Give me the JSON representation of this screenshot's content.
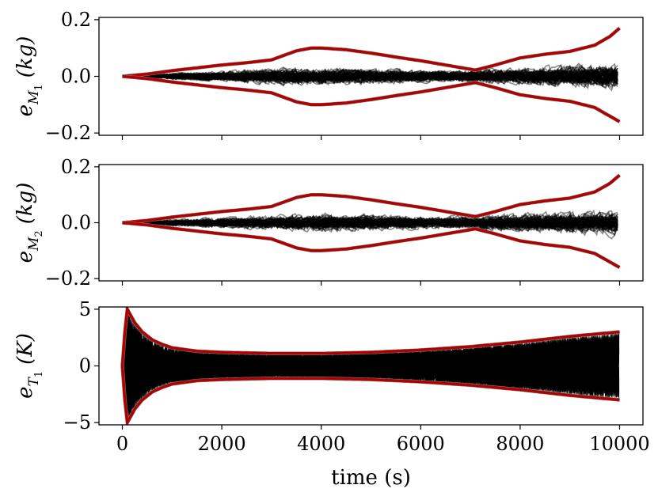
{
  "chart_data": [
    {
      "type": "line",
      "panel": "top",
      "ylabel": {
        "base": "e",
        "sub": "M",
        "subsub": "1",
        "unit": "(kg)"
      },
      "xlim": [
        0,
        10000
      ],
      "ylim": [
        -0.2,
        0.2
      ],
      "yticks": [
        -0.2,
        0.0,
        0.2
      ],
      "ytick_labels": [
        "−0.2",
        "0.0",
        "0.2"
      ],
      "xticks": [
        0,
        2000,
        4000,
        6000,
        8000,
        10000
      ],
      "show_xtick_labels": false,
      "envelope_color": "#b00000",
      "trajectory_color": "#000000",
      "series": [
        {
          "role": "upper-bound",
          "x": [
            0,
            500,
            1000,
            1500,
            2000,
            2500,
            3000,
            3500,
            3800,
            4000,
            4500,
            5000,
            5500,
            6000,
            6500,
            7000,
            7100,
            7500,
            8000,
            8500,
            9000,
            9500,
            9800,
            10000
          ],
          "values": [
            0.0,
            0.008,
            0.02,
            0.03,
            0.04,
            0.048,
            0.058,
            0.09,
            0.1,
            0.1,
            0.094,
            0.082,
            0.068,
            0.055,
            0.04,
            0.025,
            0.022,
            0.04,
            0.065,
            0.078,
            0.088,
            0.11,
            0.14,
            0.17
          ]
        },
        {
          "role": "lower-bound",
          "x": [
            0,
            500,
            1000,
            1500,
            2000,
            2500,
            3000,
            3500,
            3800,
            4000,
            4500,
            5000,
            5500,
            6000,
            6500,
            7000,
            7100,
            7500,
            8000,
            8500,
            9000,
            9500,
            9800,
            10000
          ],
          "values": [
            0.0,
            -0.008,
            -0.02,
            -0.03,
            -0.04,
            -0.048,
            -0.058,
            -0.09,
            -0.1,
            -0.1,
            -0.094,
            -0.082,
            -0.068,
            -0.055,
            -0.04,
            -0.025,
            -0.022,
            -0.04,
            -0.065,
            -0.078,
            -0.088,
            -0.11,
            -0.14,
            -0.16
          ]
        }
      ],
      "trajectory_band": {
        "x": [
          0,
          1000,
          2000,
          3000,
          4000,
          5000,
          6000,
          7000,
          8000,
          9000,
          10000
        ],
        "max_abs": [
          0.0,
          0.02,
          0.03,
          0.045,
          0.05,
          0.045,
          0.035,
          0.035,
          0.05,
          0.06,
          0.075
        ]
      }
    },
    {
      "type": "line",
      "panel": "middle",
      "ylabel": {
        "base": "e",
        "sub": "M",
        "subsub": "2",
        "unit": "(kg)"
      },
      "xlim": [
        0,
        10000
      ],
      "ylim": [
        -0.2,
        0.2
      ],
      "yticks": [
        -0.2,
        0.0,
        0.2
      ],
      "ytick_labels": [
        "−0.2",
        "0.0",
        "0.2"
      ],
      "xticks": [
        0,
        2000,
        4000,
        6000,
        8000,
        10000
      ],
      "show_xtick_labels": false,
      "envelope_color": "#b00000",
      "trajectory_color": "#000000",
      "series": [
        {
          "role": "upper-bound",
          "x": [
            0,
            500,
            1000,
            1500,
            2000,
            2500,
            3000,
            3500,
            3800,
            4000,
            4500,
            5000,
            5500,
            6000,
            6500,
            7000,
            7100,
            7500,
            8000,
            8500,
            9000,
            9500,
            9800,
            10000
          ],
          "values": [
            0.0,
            0.008,
            0.02,
            0.03,
            0.04,
            0.048,
            0.058,
            0.09,
            0.1,
            0.1,
            0.094,
            0.082,
            0.068,
            0.055,
            0.04,
            0.025,
            0.022,
            0.04,
            0.065,
            0.078,
            0.088,
            0.11,
            0.14,
            0.17
          ]
        },
        {
          "role": "lower-bound",
          "x": [
            0,
            500,
            1000,
            1500,
            2000,
            2500,
            3000,
            3500,
            3800,
            4000,
            4500,
            5000,
            5500,
            6000,
            6500,
            7000,
            7100,
            7500,
            8000,
            8500,
            9000,
            9500,
            9800,
            10000
          ],
          "values": [
            0.0,
            -0.008,
            -0.02,
            -0.03,
            -0.04,
            -0.048,
            -0.058,
            -0.09,
            -0.1,
            -0.1,
            -0.094,
            -0.082,
            -0.068,
            -0.055,
            -0.04,
            -0.025,
            -0.022,
            -0.04,
            -0.065,
            -0.078,
            -0.088,
            -0.11,
            -0.14,
            -0.16
          ]
        }
      ],
      "trajectory_band": {
        "x": [
          0,
          1000,
          2000,
          3000,
          4000,
          5000,
          6000,
          7000,
          8000,
          9000,
          10000
        ],
        "max_abs": [
          0.0,
          0.02,
          0.03,
          0.04,
          0.05,
          0.045,
          0.035,
          0.035,
          0.05,
          0.06,
          0.07
        ]
      }
    },
    {
      "type": "line",
      "panel": "bottom",
      "ylabel": {
        "base": "e",
        "sub": "T",
        "subsub": "1",
        "unit": "(K)"
      },
      "xlabel": "time (s)",
      "xlim": [
        0,
        10000
      ],
      "ylim": [
        -5,
        5
      ],
      "yticks": [
        -5,
        0,
        5
      ],
      "ytick_labels": [
        "−5",
        "0",
        "5"
      ],
      "xticks": [
        0,
        2000,
        4000,
        6000,
        8000,
        10000
      ],
      "xtick_labels": [
        "0",
        "2000",
        "4000",
        "6000",
        "8000",
        "10000"
      ],
      "show_xtick_labels": true,
      "envelope_color": "#b00000",
      "trajectory_color": "#000000",
      "series": [
        {
          "role": "upper-bound",
          "x": [
            0,
            50,
            100,
            150,
            250,
            400,
            600,
            800,
            1000,
            1500,
            2000,
            3000,
            4000,
            5000,
            6000,
            7000,
            8000,
            9000,
            10000
          ],
          "values": [
            0.0,
            3.0,
            5.0,
            4.6,
            3.8,
            3.0,
            2.3,
            1.9,
            1.6,
            1.3,
            1.2,
            1.1,
            1.1,
            1.2,
            1.4,
            1.7,
            2.1,
            2.6,
            3.0
          ]
        },
        {
          "role": "lower-bound",
          "x": [
            0,
            50,
            100,
            150,
            250,
            400,
            600,
            800,
            1000,
            1500,
            2000,
            3000,
            4000,
            5000,
            6000,
            7000,
            8000,
            9000,
            10000
          ],
          "values": [
            0.0,
            -3.0,
            -5.0,
            -4.6,
            -3.8,
            -3.0,
            -2.3,
            -1.9,
            -1.6,
            -1.3,
            -1.2,
            -1.1,
            -1.1,
            -1.2,
            -1.4,
            -1.7,
            -2.1,
            -2.6,
            -3.0
          ]
        }
      ],
      "trajectory_band": {
        "x": [
          0,
          50,
          100,
          150,
          250,
          400,
          600,
          800,
          1000,
          1500,
          2000,
          3000,
          4000,
          5000,
          6000,
          7000,
          8000,
          9000,
          10000
        ],
        "max_abs": [
          0.0,
          2.9,
          4.9,
          4.5,
          3.7,
          2.9,
          2.2,
          1.8,
          1.55,
          1.25,
          1.15,
          1.05,
          1.05,
          1.15,
          1.35,
          1.65,
          2.05,
          2.5,
          2.9
        ]
      }
    }
  ]
}
